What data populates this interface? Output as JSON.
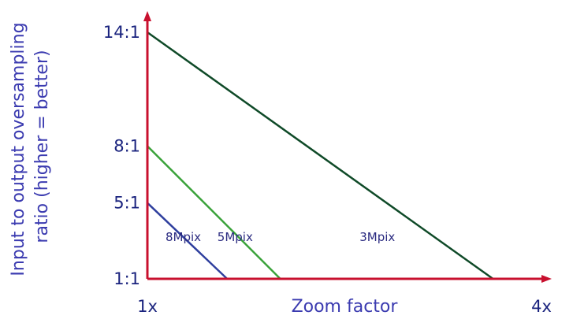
{
  "colors": {
    "axis": "#c8102e",
    "text": "#1a237e",
    "axis_text": "#3b3bb0"
  },
  "chart_data": {
    "type": "line",
    "xlabel": "Zoom factor",
    "ylabel_lines": [
      "Input to output oversampling",
      "ratio (higher = better)"
    ],
    "x_tick_labels": [
      {
        "x": 1,
        "label": "1x"
      },
      {
        "x": 4,
        "label": "4x"
      }
    ],
    "y_tick_labels": [
      {
        "y": 1,
        "label": "1:1"
      },
      {
        "y": 5,
        "label": "5:1"
      },
      {
        "y": 8,
        "label": "8:1"
      },
      {
        "y": 14,
        "label": "14:1"
      }
    ],
    "xlim": [
      1,
      4
    ],
    "ylim": [
      1,
      14
    ],
    "grid": false,
    "series": [
      {
        "name": "8Mpix",
        "color": "#2f3f9e",
        "points": [
          [
            1,
            5
          ],
          [
            1.6,
            1
          ]
        ],
        "label_at": [
          1.27,
          3.0
        ]
      },
      {
        "name": "5Mpix",
        "color": "#3aa23a",
        "points": [
          [
            1,
            8
          ],
          [
            2.0,
            1
          ]
        ],
        "label_at": [
          1.66,
          3.0
        ]
      },
      {
        "name": "3Mpix",
        "color": "#0f4a28",
        "points": [
          [
            1,
            14
          ],
          [
            3.6,
            1
          ]
        ],
        "label_at": [
          2.73,
          3.0
        ]
      }
    ]
  }
}
